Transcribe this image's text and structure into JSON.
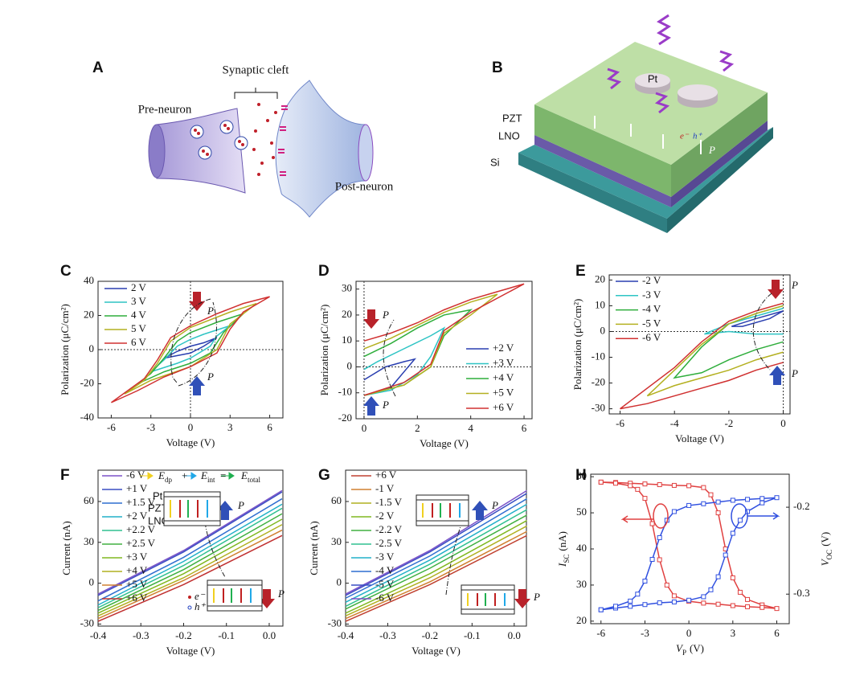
{
  "figure_a": {
    "panel": "A",
    "cleft": "Synaptic cleft",
    "pre": "Pre-neuron",
    "post": "Post-neuron"
  },
  "figure_b": {
    "panel": "B",
    "pt": "Pt",
    "pzt": "PZT",
    "lno": "LNO",
    "si": "Si",
    "p": "P",
    "electron": "e⁻",
    "hole": "h⁺"
  },
  "chart_data": [
    {
      "type": "line",
      "panel": "C",
      "xlabel": "Voltage (V)",
      "ylabel": "Polarization (μC/cm²)",
      "xlim": [
        -7,
        7
      ],
      "xticks": [
        -6,
        -3,
        0,
        3,
        6
      ],
      "ylim": [
        -40,
        40
      ],
      "yticks": [
        -40,
        -20,
        0,
        20,
        40
      ],
      "zero_lines": true,
      "legend": "upper left",
      "annotations": [
        "P",
        "P"
      ],
      "series": [
        {
          "name": "2 V",
          "color": "#2a3fb0",
          "x": [
            -2,
            0,
            1,
            2,
            1,
            0,
            -1,
            -2
          ],
          "values": [
            -5,
            -2,
            2,
            7,
            4,
            2,
            -1,
            -5
          ]
        },
        {
          "name": "3 V",
          "color": "#2ec4c4",
          "x": [
            -3,
            -1,
            0,
            1.5,
            2,
            3,
            1,
            0,
            -1,
            -2,
            -3
          ],
          "values": [
            -13,
            -8,
            -5,
            2,
            8,
            14,
            9,
            6,
            2,
            -6,
            -13
          ]
        },
        {
          "name": "4 V",
          "color": "#2fae3c",
          "x": [
            -4,
            -2,
            0,
            1.5,
            2.5,
            4,
            2,
            0,
            -1,
            -2,
            -3,
            -4
          ],
          "values": [
            -20,
            -13,
            -8,
            -2,
            10,
            21,
            16,
            10,
            5,
            -5,
            -14,
            -20
          ]
        },
        {
          "name": "5 V",
          "color": "#b4b020",
          "x": [
            -5,
            -3,
            0,
            2,
            3,
            5,
            3,
            0,
            -1.5,
            -2.5,
            -3.5,
            -5
          ],
          "values": [
            -26,
            -18,
            -10,
            0,
            15,
            27,
            22,
            13,
            5,
            -8,
            -18,
            -26
          ]
        },
        {
          "name": "6 V",
          "color": "#d03030",
          "x": [
            -6,
            -4,
            -2,
            0,
            2,
            3,
            4,
            6,
            4,
            2,
            0,
            -1.5,
            -2.5,
            -3.5,
            -6
          ],
          "values": [
            -31,
            -24,
            -16,
            -10,
            -2,
            12,
            22,
            31,
            27,
            21,
            14,
            7,
            -6,
            -17,
            -31
          ]
        }
      ]
    },
    {
      "type": "line",
      "panel": "D",
      "xlabel": "Voltage (V)",
      "ylabel": "Polarization (μC/cm²)",
      "xlim": [
        -0.3,
        6.3
      ],
      "xticks": [
        0,
        2,
        4,
        6
      ],
      "ylim": [
        -20,
        33
      ],
      "yticks": [
        -20,
        -10,
        0,
        10,
        20,
        30
      ],
      "zero_lines": true,
      "legend": "lower right",
      "annotations": [
        "P",
        "P"
      ],
      "series": [
        {
          "name": "+2 V",
          "color": "#2a3fb0",
          "x": [
            0,
            1,
            1.9,
            1.5,
            0.8,
            0
          ],
          "values": [
            -11,
            -8,
            3,
            2,
            0,
            -5
          ]
        },
        {
          "name": "+3 V",
          "color": "#2ec4c4",
          "x": [
            0,
            1,
            2,
            2.5,
            3,
            2.5,
            1.5,
            0.5,
            0
          ],
          "values": [
            -11,
            -9,
            -3,
            4,
            15,
            12,
            7,
            2,
            -1
          ]
        },
        {
          "name": "+4 V",
          "color": "#2fae3c",
          "x": [
            0,
            1.5,
            2.5,
            3,
            4,
            3,
            2,
            1,
            0
          ],
          "values": [
            -11,
            -7,
            0,
            12,
            22,
            20,
            15,
            9,
            4
          ]
        },
        {
          "name": "+5 V",
          "color": "#b4b020",
          "x": [
            0,
            1.5,
            2.5,
            3,
            4,
            5,
            4,
            3,
            2,
            1,
            0
          ],
          "values": [
            -11,
            -7,
            0,
            13,
            20,
            28,
            25,
            21,
            16,
            11,
            7
          ]
        },
        {
          "name": "+6 V",
          "color": "#d03030",
          "x": [
            0,
            1.5,
            2.5,
            3,
            4,
            6,
            5,
            4,
            3,
            2,
            1,
            0
          ],
          "values": [
            -11,
            -6,
            1,
            14,
            21,
            32,
            29,
            26,
            22,
            17,
            13,
            10
          ]
        }
      ]
    },
    {
      "type": "line",
      "panel": "E",
      "xlabel": "Voltage (V)",
      "ylabel": "Polarization (μC/cm²)",
      "xlim": [
        -6.4,
        0.25
      ],
      "xticks": [
        -6,
        -4,
        -2,
        0
      ],
      "ylim": [
        -32,
        22
      ],
      "yticks": [
        -30,
        -20,
        -10,
        0,
        10,
        20
      ],
      "zero_lines": true,
      "legend": "upper left",
      "annotations": [
        "P",
        "P"
      ],
      "series": [
        {
          "name": "-2 V",
          "color": "#2a3fb0",
          "x": [
            0,
            -1,
            -1.9,
            -1.5,
            -0.5,
            0
          ],
          "values": [
            8,
            5,
            2,
            2,
            5,
            8
          ]
        },
        {
          "name": "-3 V",
          "color": "#2ec4c4",
          "x": [
            0,
            -1,
            -2,
            -2.9,
            -2,
            -1,
            0
          ],
          "values": [
            9,
            6,
            3,
            -1,
            0,
            -1,
            -1
          ]
        },
        {
          "name": "-4 V",
          "color": "#2fae3c",
          "x": [
            0,
            -1,
            -2,
            -3,
            -4,
            -3,
            -2,
            -1,
            0
          ],
          "values": [
            10,
            7,
            3,
            -6,
            -18,
            -16,
            -11,
            -7,
            -4
          ]
        },
        {
          "name": "-5 V",
          "color": "#b4b020",
          "x": [
            0,
            -1,
            -2,
            -3,
            -4,
            -5,
            -4,
            -3,
            -2,
            -1,
            0
          ],
          "values": [
            10,
            7,
            3,
            -5,
            -15,
            -25,
            -21,
            -18,
            -15,
            -11,
            -8
          ]
        },
        {
          "name": "-6 V",
          "color": "#d03030",
          "x": [
            0,
            -1,
            -2,
            -3,
            -4,
            -6,
            -5,
            -4,
            -3,
            -2,
            -1,
            0
          ],
          "values": [
            11,
            8,
            4,
            -4,
            -14,
            -30,
            -28,
            -25,
            -22,
            -19,
            -15,
            -12
          ]
        }
      ]
    },
    {
      "type": "line",
      "panel": "F",
      "xlabel": "Voltage (V)",
      "ylabel": "Current (nA)",
      "xlim": [
        -0.4,
        0.032
      ],
      "xticks": [
        -0.4,
        -0.3,
        -0.2,
        -0.1,
        {
          "value": 0,
          "label": "0.0"
        }
      ],
      "ylim": [
        -31.5,
        83
      ],
      "yticks": [
        -30,
        0,
        30,
        60
      ],
      "legend": "upper left",
      "annotations": [
        "P",
        "P"
      ],
      "equation_terms": [
        {
          "symbol": "E",
          "sub": "dp"
        },
        {
          "symbol": "E",
          "sub": "int"
        },
        {
          "symbol": "E",
          "sub": "total"
        }
      ],
      "equation_ops": [
        "+",
        "="
      ],
      "inset_labels": [
        "Pt",
        "PZT",
        "LNO"
      ],
      "carrier_labels": [
        "e⁻",
        "h⁺"
      ],
      "x": [
        -0.4,
        -0.2,
        0.03
      ],
      "series": [
        {
          "name": "-6 V",
          "color": "#7b52c8",
          "values": [
            -8,
            24,
            68
          ]
        },
        {
          "name": "+1 V",
          "color": "#3a4fc4",
          "values": [
            -9,
            23,
            67
          ]
        },
        {
          "name": "+1.5 V",
          "color": "#2f6fd0",
          "values": [
            -13,
            19,
            62
          ]
        },
        {
          "name": "+2 V",
          "color": "#22b0c8",
          "values": [
            -16,
            16,
            58
          ]
        },
        {
          "name": "+2.2 V",
          "color": "#30c090",
          "values": [
            -18,
            13,
            55
          ]
        },
        {
          "name": "+2.5 V",
          "color": "#40b040",
          "values": [
            -20,
            10,
            51
          ]
        },
        {
          "name": "+3 V",
          "color": "#80b820",
          "values": [
            -22,
            7,
            47
          ]
        },
        {
          "name": "+4 V",
          "color": "#b0b020",
          "values": [
            -24,
            4,
            43
          ]
        },
        {
          "name": "+5 V",
          "color": "#d08030",
          "values": [
            -26,
            2,
            39
          ]
        },
        {
          "name": "+6 V",
          "color": "#c03030",
          "values": [
            -28,
            -1,
            35
          ]
        }
      ]
    },
    {
      "type": "line",
      "panel": "G",
      "xlabel": "Voltage (V)",
      "ylabel": "Current (nA)",
      "xlim": [
        -0.4,
        0.029
      ],
      "xticks": [
        -0.4,
        -0.3,
        -0.2,
        -0.1,
        {
          "value": 0,
          "label": "0.0"
        }
      ],
      "ylim": [
        -31.5,
        83
      ],
      "yticks": [
        -30,
        0,
        30,
        60
      ],
      "legend": "upper left",
      "annotations": [
        "P",
        "P"
      ],
      "x": [
        -0.4,
        -0.2,
        0.03
      ],
      "series": [
        {
          "name": "+6 V",
          "color": "#c04030",
          "values": [
            -28,
            -1,
            35
          ]
        },
        {
          "name": "-1 V",
          "color": "#d08030",
          "values": [
            -26,
            1,
            38
          ]
        },
        {
          "name": "-1.5 V",
          "color": "#b0b020",
          "values": [
            -24,
            4,
            42
          ]
        },
        {
          "name": "-2 V",
          "color": "#80b820",
          "values": [
            -22,
            7,
            46
          ]
        },
        {
          "name": "-2.2 V",
          "color": "#40b040",
          "values": [
            -19,
            11,
            50
          ]
        },
        {
          "name": "-2.5 V",
          "color": "#30c090",
          "values": [
            -17,
            14,
            54
          ]
        },
        {
          "name": "-3 V",
          "color": "#22b0c8",
          "values": [
            -14,
            17,
            58
          ]
        },
        {
          "name": "-4 V",
          "color": "#2f6fd0",
          "values": [
            -11,
            20,
            62
          ]
        },
        {
          "name": "-5 V",
          "color": "#3a4fc4",
          "values": [
            -9,
            23,
            66
          ]
        },
        {
          "name": "-6 V",
          "color": "#7b52c8",
          "values": [
            -8,
            24,
            68
          ]
        }
      ]
    },
    {
      "type": "line",
      "panel": "H",
      "markers": "square",
      "xlabel": {
        "symbol": "V",
        "sub": "P",
        "unit": "(V)"
      },
      "ylabel": {
        "symbol": "I",
        "sub": "SC",
        "unit": "(nA)"
      },
      "y2label": {
        "symbol": "V",
        "sub": "OC",
        "unit": "(V)"
      },
      "xlim": [
        -6.7,
        6.85
      ],
      "xticks": [
        -6,
        -3,
        0,
        3,
        6
      ],
      "ylim": [
        19.3,
        60.7
      ],
      "yticks": [
        20,
        30,
        40,
        50,
        60
      ],
      "y2lim": [
        -0.334,
        -0.162
      ],
      "y2ticks": [
        -0.3,
        -0.2
      ],
      "series": [
        {
          "color": "#e04040",
          "x": [
            -6,
            -5,
            -4,
            -3,
            -2,
            -1,
            0,
            1,
            1.5,
            2,
            2.5,
            3,
            3.5,
            4,
            5,
            6,
            5,
            4,
            3,
            2,
            1,
            0,
            -1,
            -1.5,
            -2,
            -2.5,
            -3,
            -3.5,
            -4,
            -5,
            -6
          ],
          "values": [
            58.5,
            58.4,
            58.2,
            58,
            57.8,
            57.6,
            57.5,
            57,
            55,
            50,
            40,
            32,
            28,
            26,
            24.5,
            23.5,
            23.8,
            24,
            24.3,
            24.7,
            25,
            25.5,
            27,
            30,
            37,
            47,
            54,
            56.5,
            57.5,
            58.2,
            58.5
          ]
        },
        {
          "color": "#3050e0",
          "axis": "y2",
          "x": [
            -6,
            -5,
            -4,
            -3,
            -2,
            -1,
            0,
            1,
            1.5,
            2,
            2.5,
            3,
            3.5,
            4,
            5,
            6,
            5,
            4,
            3,
            2,
            1,
            0,
            -1,
            -1.5,
            -2,
            -2.5,
            -3,
            -3.5,
            -4,
            -5,
            -6
          ],
          "values": [
            -0.318,
            -0.316,
            -0.314,
            -0.312,
            -0.31,
            -0.309,
            -0.307,
            -0.303,
            -0.295,
            -0.28,
            -0.255,
            -0.23,
            -0.215,
            -0.205,
            -0.195,
            -0.189,
            -0.19,
            -0.191,
            -0.192,
            -0.194,
            -0.196,
            -0.198,
            -0.205,
            -0.215,
            -0.235,
            -0.26,
            -0.285,
            -0.3,
            -0.308,
            -0.314,
            -0.318
          ]
        }
      ]
    }
  ]
}
